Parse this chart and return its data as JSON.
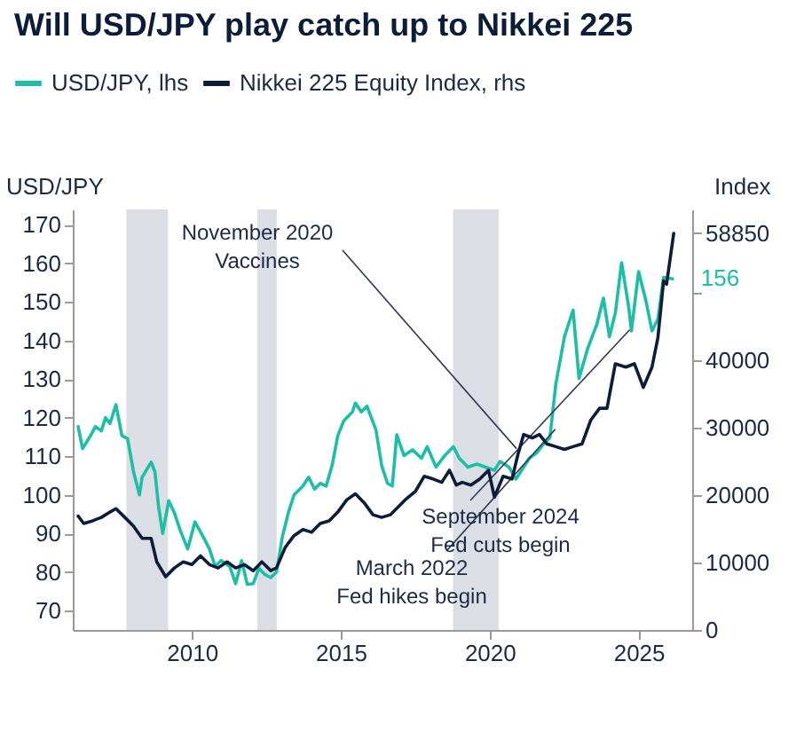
{
  "chart_data": {
    "type": "line",
    "title": "Will USD/JPY play catch up to Nikkei 225",
    "ylabel": "USD/JPY",
    "y2label": "Index",
    "legend": "top left",
    "xlim": [
      2006,
      2026.8
    ],
    "xticks": [
      2010,
      2015,
      2020,
      2025
    ],
    "ylim": [
      65,
      174
    ],
    "yticks": [
      70,
      80,
      90,
      100,
      110,
      120,
      130,
      140,
      150,
      160,
      170
    ],
    "y2lim": [
      0,
      62400
    ],
    "y2ticks": [
      0,
      10000,
      20000,
      30000,
      40000,
      {
        "value": 50000,
        "label": null
      },
      58850
    ],
    "bands": [
      {
        "axis": "x",
        "from": 2007.8,
        "to": 2009.2,
        "color": "#dcdee6"
      },
      {
        "axis": "x",
        "from": 2012.2,
        "to": 2012.85,
        "color": "#dcdee6"
      },
      {
        "axis": "x",
        "from": 2018.77,
        "to": 2020.3,
        "color": "#dcdee6"
      }
    ],
    "annotations": [
      {
        "text": "November 2020\nVaccines",
        "x": 2020.9,
        "y": 112
      },
      {
        "text": "September 2024\nFed cuts begin",
        "x": 2024.7,
        "y": 142.8
      },
      {
        "text": "March 2022\nFed hikes begin",
        "x": 2022.2,
        "y": 117
      }
    ],
    "series": [
      {
        "name": "USD/JPY, lhs",
        "color": "#1cbfa6",
        "x": [
          2006.18,
          2006.33,
          2006.57,
          2006.76,
          2006.96,
          2007.1,
          2007.25,
          2007.45,
          2007.65,
          2007.84,
          2008.04,
          2008.24,
          2008.33,
          2008.63,
          2008.76,
          2008.88,
          2009.02,
          2009.22,
          2009.41,
          2009.61,
          2009.86,
          2010.1,
          2010.39,
          2010.59,
          2010.78,
          2010.98,
          2011.27,
          2011.47,
          2011.67,
          2011.86,
          2012.06,
          2012.25,
          2012.45,
          2012.65,
          2012.84,
          2013.04,
          2013.24,
          2013.43,
          2013.73,
          2013.92,
          2014.12,
          2014.31,
          2014.51,
          2014.71,
          2014.9,
          2015.1,
          2015.39,
          2015.49,
          2015.69,
          2015.88,
          2016.18,
          2016.37,
          2016.57,
          2016.73,
          2016.88,
          2017.12,
          2017.41,
          2017.71,
          2017.9,
          2018.2,
          2018.49,
          2018.78,
          2018.98,
          2019.27,
          2019.57,
          2019.86,
          2020.16,
          2020.35,
          2020.65,
          2020.88,
          2021.14,
          2021.33,
          2021.59,
          2021.82,
          2022.02,
          2022.22,
          2022.51,
          2022.8,
          2023.0,
          2023.29,
          2023.59,
          2023.82,
          2024.02,
          2024.22,
          2024.43,
          2024.67,
          2024.76,
          2025.0,
          2025.25,
          2025.45,
          2025.65,
          2025.84,
          2026.14
        ],
        "values": [
          117.7,
          112,
          115,
          117.7,
          116.6,
          120,
          118.5,
          123.4,
          115.4,
          114.6,
          106,
          100,
          104.6,
          108.5,
          106,
          97,
          90,
          98.5,
          95.4,
          90.8,
          86,
          93,
          89,
          86,
          81.5,
          83,
          81.5,
          77,
          83,
          76.8,
          77,
          81,
          79.4,
          78.6,
          80,
          89.2,
          95.4,
          100,
          102.3,
          104.6,
          101.5,
          103,
          102.3,
          107.7,
          115.4,
          119.2,
          121.5,
          123.8,
          121.5,
          123,
          116.9,
          107.7,
          103,
          102.3,
          115.6,
          110.2,
          111.7,
          109.5,
          112.5,
          107.2,
          110.2,
          112.5,
          109.5,
          107.2,
          108,
          107.2,
          106.4,
          108.7,
          107.2,
          104.1,
          107.2,
          109.5,
          111,
          113.3,
          114.8,
          128.7,
          141,
          147.9,
          130.2,
          137.9,
          144,
          151,
          141,
          147.2,
          160.2,
          148.6,
          142.5,
          157.9,
          150.2,
          142.5,
          145.6,
          156.4,
          156
        ],
        "value_labels": [
          null,
          null,
          null,
          null,
          null,
          null,
          null,
          null,
          null,
          null,
          null,
          null,
          null,
          null,
          null,
          null,
          null,
          null,
          null,
          null,
          null,
          null,
          null,
          null,
          null,
          null,
          null,
          null,
          null,
          null,
          null,
          null,
          null,
          null,
          null,
          null,
          null,
          null,
          null,
          null,
          null,
          null,
          null,
          null,
          null,
          null,
          null,
          null,
          null,
          null,
          null,
          null,
          null,
          null,
          null,
          null,
          null,
          null,
          null,
          null,
          null,
          null,
          null,
          null,
          null,
          null,
          null,
          null,
          null,
          null,
          null,
          null,
          null,
          null,
          null,
          null,
          null,
          null,
          null,
          null,
          null,
          null,
          null,
          null,
          null,
          null,
          null,
          null,
          null,
          null,
          null,
          null,
          "156"
        ]
      },
      {
        "name": "Nikkei 225 Equity Index, rhs",
        "color": "#0c1d3a",
        "axis": "y2",
        "x": [
          2006.18,
          2006.37,
          2006.67,
          2006.96,
          2007.25,
          2007.45,
          2007.75,
          2008.04,
          2008.33,
          2008.63,
          2008.82,
          2009.12,
          2009.41,
          2009.71,
          2010.0,
          2010.29,
          2010.59,
          2010.88,
          2011.18,
          2011.47,
          2011.76,
          2012.06,
          2012.35,
          2012.65,
          2012.84,
          2013.14,
          2013.43,
          2013.73,
          2014.02,
          2014.31,
          2014.61,
          2014.9,
          2015.2,
          2015.49,
          2015.78,
          2016.08,
          2016.37,
          2016.67,
          2016.96,
          2017.16,
          2017.51,
          2017.8,
          2018.1,
          2018.39,
          2018.65,
          2018.88,
          2019.08,
          2019.37,
          2019.67,
          2019.96,
          2020.16,
          2020.45,
          2020.75,
          2020.94,
          2021.14,
          2021.43,
          2021.67,
          2021.92,
          2022.22,
          2022.51,
          2022.8,
          2023.1,
          2023.39,
          2023.69,
          2023.94,
          2024.22,
          2024.57,
          2024.86,
          2025.16,
          2025.45,
          2025.65,
          2025.84,
          2025.94,
          2026.18
        ],
        "values": [
          16900,
          15800,
          16200,
          16700,
          17500,
          18000,
          16700,
          15400,
          13600,
          13600,
          10100,
          7900,
          9200,
          10100,
          9700,
          11000,
          9700,
          9200,
          10100,
          9200,
          9700,
          8800,
          10100,
          8800,
          9200,
          12300,
          14000,
          14900,
          14500,
          15800,
          16200,
          17500,
          19300,
          20200,
          18900,
          17100,
          16700,
          17100,
          18400,
          19300,
          20600,
          22800,
          22400,
          21900,
          23700,
          21500,
          21900,
          21500,
          22400,
          23700,
          19700,
          22800,
          22400,
          25900,
          29000,
          28500,
          29000,
          27600,
          27200,
          26800,
          27200,
          27600,
          31100,
          32900,
          32900,
          39500,
          39000,
          39500,
          36000,
          39000,
          43400,
          51800,
          51300,
          58850
        ]
      }
    ]
  }
}
